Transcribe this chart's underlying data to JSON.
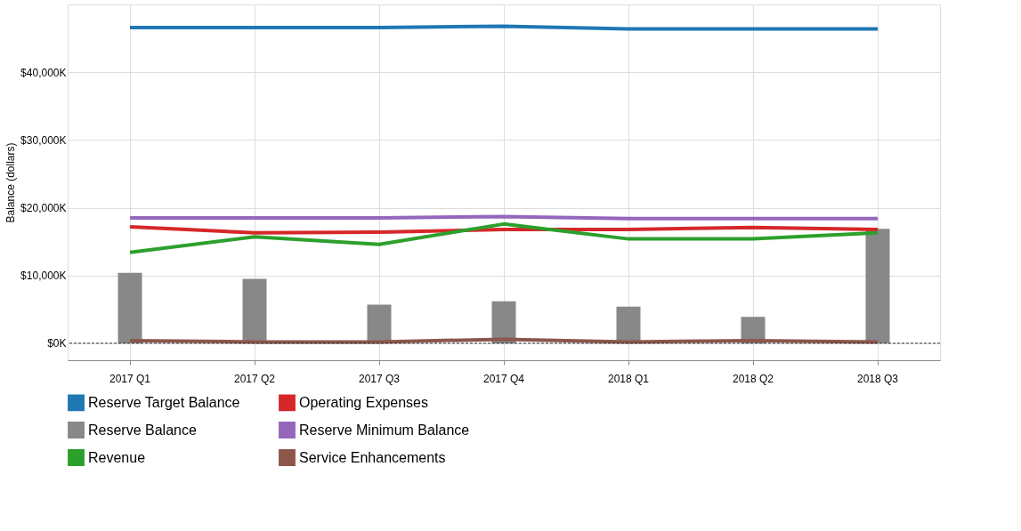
{
  "chart_data": {
    "type": "line",
    "ylabel": "Balance (dollars)",
    "categories": [
      "2017 Q1",
      "2017 Q2",
      "2017 Q3",
      "2017 Q4",
      "2018 Q1",
      "2018 Q2",
      "2018 Q3"
    ],
    "series": [
      {
        "name": "Reserve Target Balance",
        "color": "#1f77b4",
        "values": [
          46600,
          46600,
          46600,
          46800,
          46400,
          46400,
          46400
        ]
      },
      {
        "name": "Operating Expenses",
        "color": "#d62728",
        "values": [
          17200,
          16300,
          16400,
          16800,
          16800,
          17100,
          16800
        ]
      },
      {
        "name": "Reserve Balance",
        "type": "bar",
        "color": "#888888",
        "values": [
          10400,
          9500,
          5700,
          6200,
          5400,
          3900,
          16900
        ]
      },
      {
        "name": "Reserve Minimum Balance",
        "color": "#9467bd",
        "values": [
          18500,
          18500,
          18500,
          18700,
          18400,
          18400,
          18400
        ]
      },
      {
        "name": "Revenue",
        "color": "#2ca02c",
        "values": [
          13400,
          15700,
          14600,
          17600,
          15400,
          15400,
          16300
        ]
      },
      {
        "name": "Service Enhancements",
        "color": "#8c564b",
        "values": [
          400,
          200,
          200,
          600,
          200,
          400,
          200
        ]
      }
    ],
    "ylim": [
      -2500,
      50000
    ],
    "yticks": [
      {
        "value": 0,
        "label": "$0K"
      },
      {
        "value": 10000,
        "label": "$10,000K"
      },
      {
        "value": 20000,
        "label": "$20,000K"
      },
      {
        "value": 30000,
        "label": "$30,000K"
      },
      {
        "value": 40000,
        "label": "$40,000K"
      }
    ],
    "ref_lines": [
      {
        "axis": "y",
        "value": 0,
        "line_style": "dashed",
        "color": "#333333"
      }
    ],
    "grid": true,
    "legend": "bottom"
  }
}
